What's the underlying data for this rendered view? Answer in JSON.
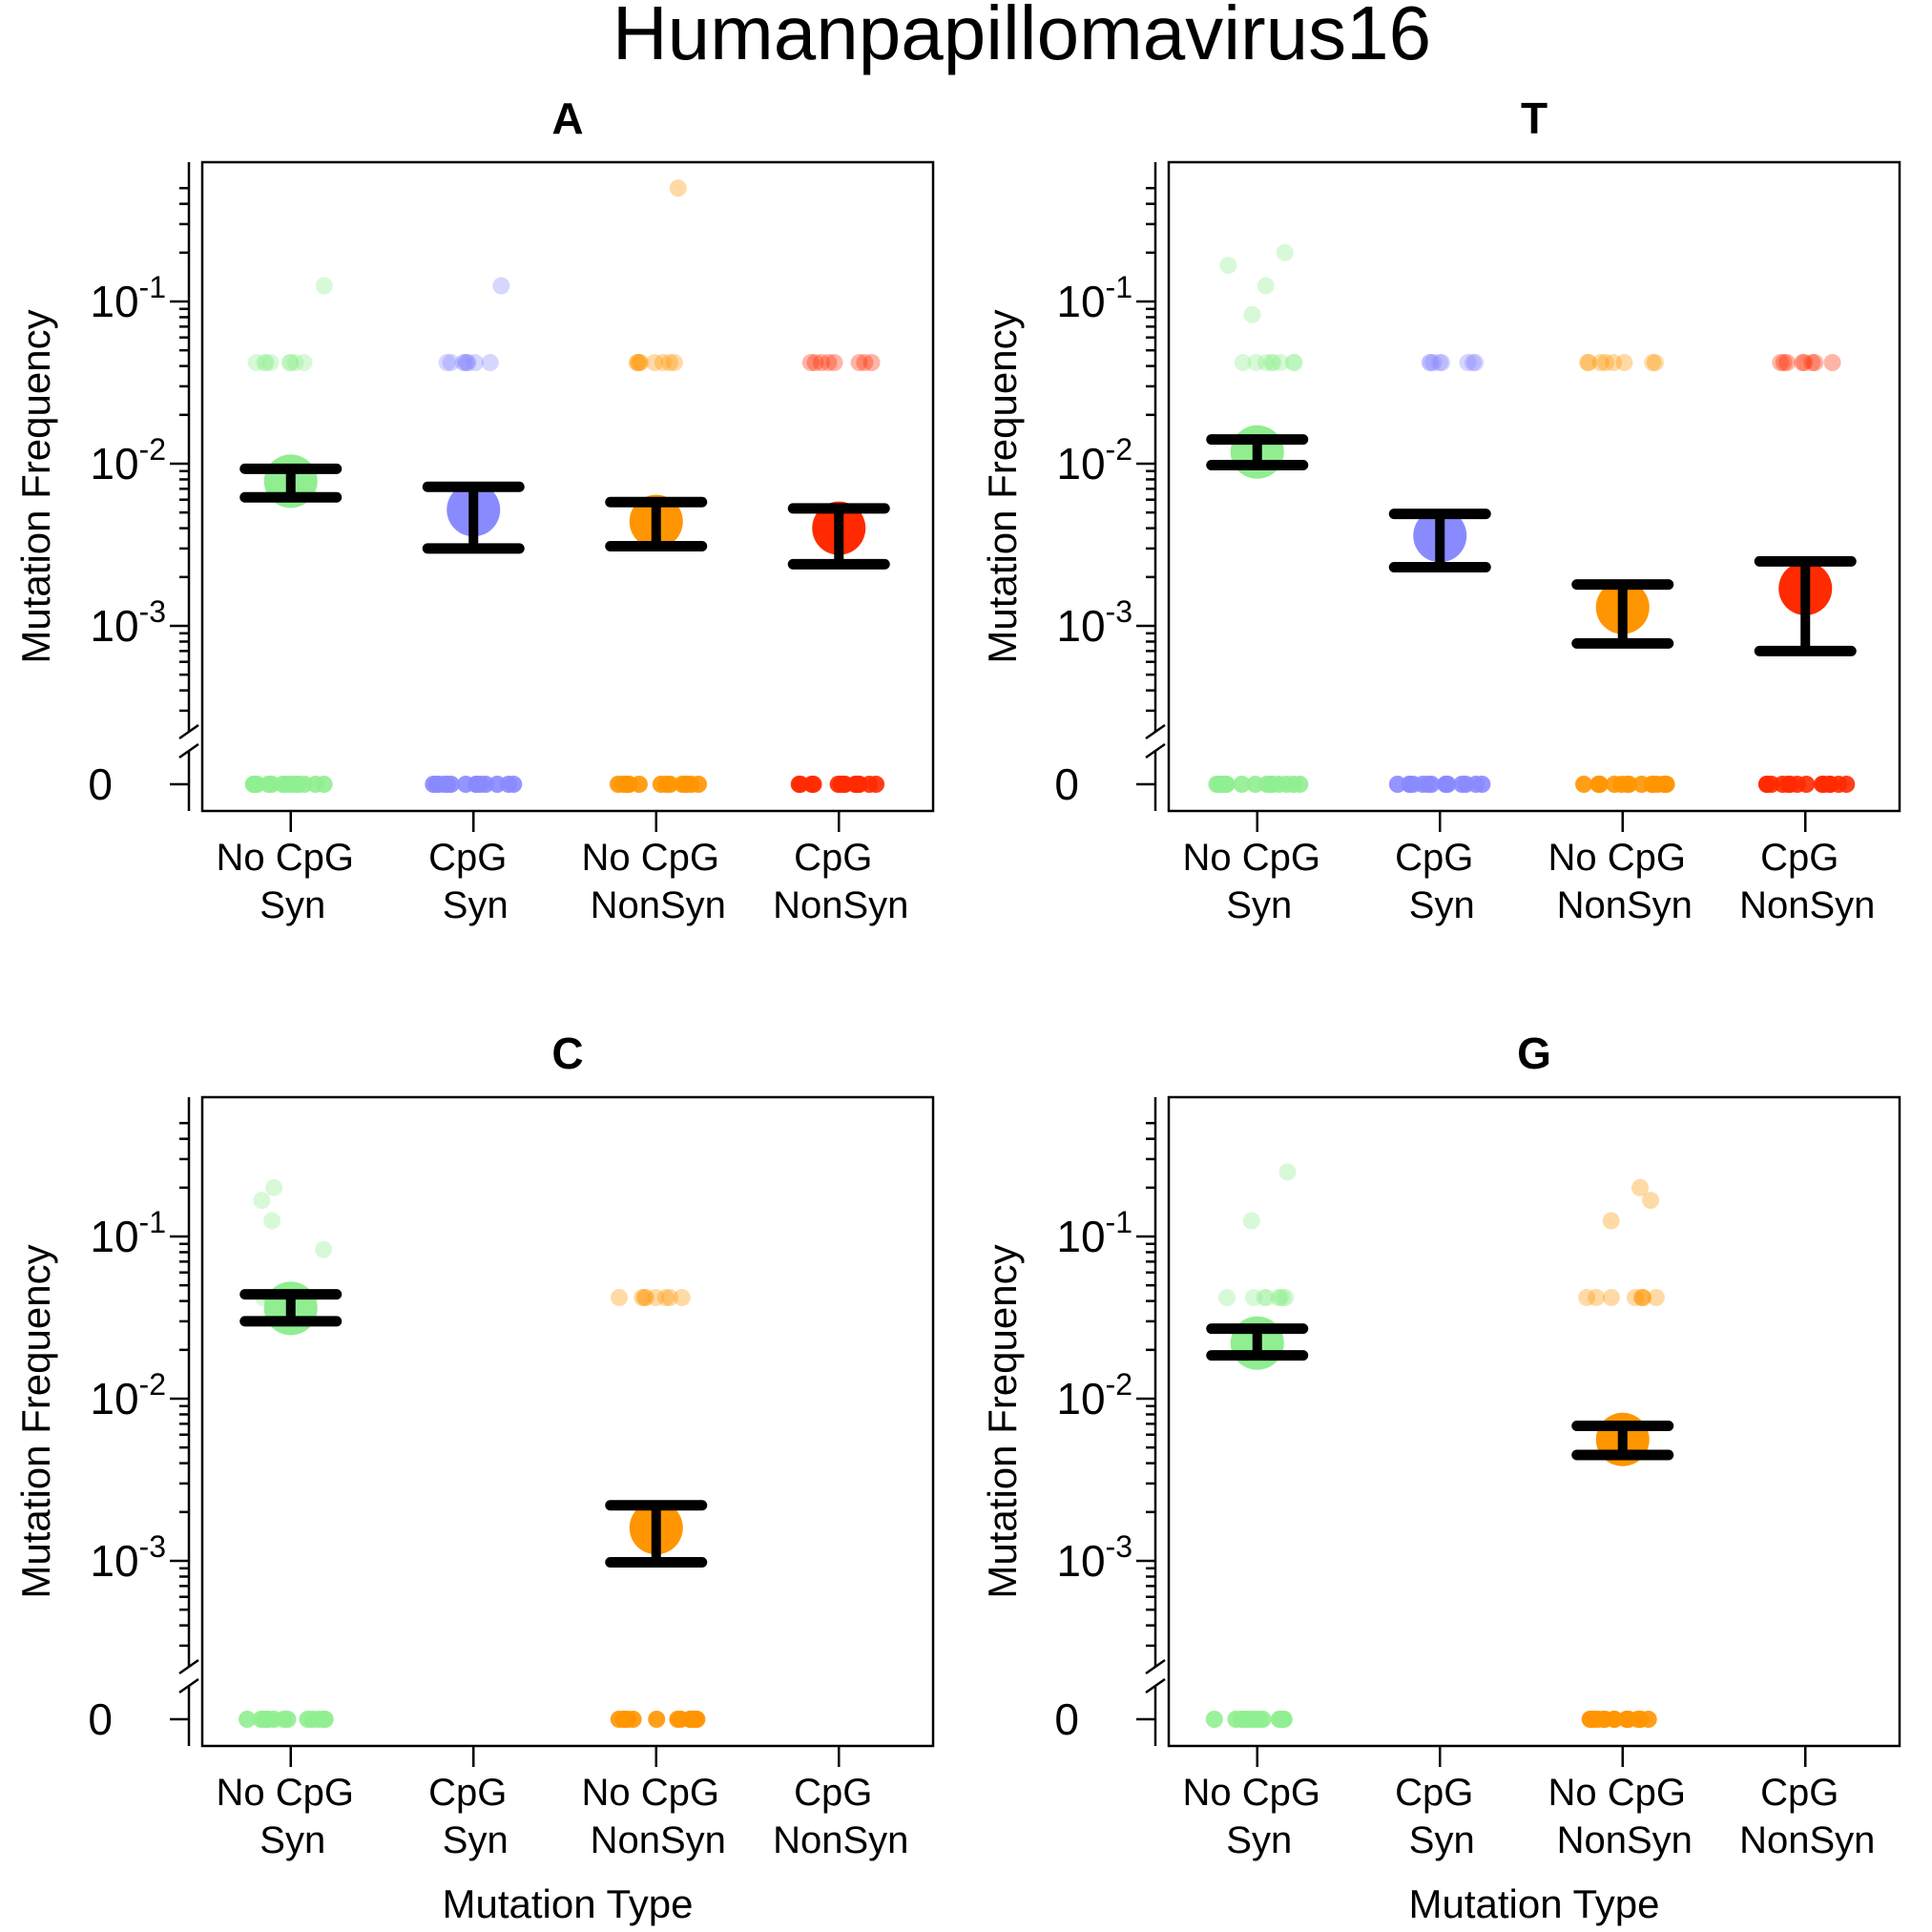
{
  "title": "Humanpapillomavirus16",
  "colors": {
    "no_cpg_syn": "#90EE90",
    "cpg_syn": "#8A8AFF",
    "no_cpg_nonsyn": "#FF9500",
    "cpg_nonsyn": "#FF2A00",
    "error_bar": "#000000"
  },
  "chart_data": [
    {
      "type": "scatter",
      "title": "A",
      "ylabel": "Mutation Frequency",
      "xlabel": "",
      "y_scale": "log with broken axis at 0",
      "ylim": [
        0.0003,
        0.6
      ],
      "y_ticks": [
        {
          "base": "10",
          "exp": "-1"
        },
        {
          "base": "10",
          "exp": "-2"
        },
        {
          "base": "10",
          "exp": "-3"
        },
        {
          "base": "0",
          "exp": ""
        }
      ],
      "categories": [
        {
          "line1": "No CpG",
          "line2": "Syn"
        },
        {
          "line1": "CpG",
          "line2": "Syn"
        },
        {
          "line1": "No CpG",
          "line2": "NonSyn"
        },
        {
          "line1": "CpG",
          "line2": "NonSyn"
        }
      ],
      "series": [
        {
          "category": 0,
          "color_key": "no_cpg_syn",
          "mean": 0.0078,
          "ci": [
            0.0062,
            0.0093
          ],
          "points": [
            0,
            0.042,
            0.125
          ]
        },
        {
          "category": 1,
          "color_key": "cpg_syn",
          "mean": 0.0052,
          "ci": [
            0.003,
            0.0072
          ],
          "points": [
            0,
            0.042,
            0.125
          ]
        },
        {
          "category": 2,
          "color_key": "no_cpg_nonsyn",
          "mean": 0.0044,
          "ci": [
            0.0031,
            0.0058
          ],
          "points": [
            0,
            0.042,
            0.5
          ]
        },
        {
          "category": 3,
          "color_key": "cpg_nonsyn",
          "mean": 0.004,
          "ci": [
            0.0024,
            0.0053
          ],
          "points": [
            0,
            0.042
          ]
        }
      ]
    },
    {
      "type": "scatter",
      "title": "T",
      "ylabel": "Mutation Frequency",
      "xlabel": "",
      "y_scale": "log with broken axis at 0",
      "ylim": [
        0.0003,
        0.6
      ],
      "y_ticks": [
        {
          "base": "10",
          "exp": "-1"
        },
        {
          "base": "10",
          "exp": "-2"
        },
        {
          "base": "10",
          "exp": "-3"
        },
        {
          "base": "0",
          "exp": ""
        }
      ],
      "categories": [
        {
          "line1": "No CpG",
          "line2": "Syn"
        },
        {
          "line1": "CpG",
          "line2": "Syn"
        },
        {
          "line1": "No CpG",
          "line2": "NonSyn"
        },
        {
          "line1": "CpG",
          "line2": "NonSyn"
        }
      ],
      "series": [
        {
          "category": 0,
          "color_key": "no_cpg_syn",
          "mean": 0.0118,
          "ci": [
            0.0098,
            0.0141
          ],
          "points": [
            0,
            0.042,
            0.083,
            0.125,
            0.167,
            0.2
          ]
        },
        {
          "category": 1,
          "color_key": "cpg_syn",
          "mean": 0.0036,
          "ci": [
            0.0023,
            0.0049
          ],
          "points": [
            0,
            0.042
          ]
        },
        {
          "category": 2,
          "color_key": "no_cpg_nonsyn",
          "mean": 0.0013,
          "ci": [
            0.00078,
            0.0018
          ],
          "points": [
            0,
            0.042
          ]
        },
        {
          "category": 3,
          "color_key": "cpg_nonsyn",
          "mean": 0.0017,
          "ci": [
            0.0007,
            0.0025
          ],
          "points": [
            0,
            0.042
          ]
        }
      ]
    },
    {
      "type": "scatter",
      "title": "C",
      "ylabel": "Mutation Frequency",
      "xlabel": "Mutation Type",
      "y_scale": "log with broken axis at 0",
      "ylim": [
        0.0003,
        0.6
      ],
      "y_ticks": [
        {
          "base": "10",
          "exp": "-1"
        },
        {
          "base": "10",
          "exp": "-2"
        },
        {
          "base": "10",
          "exp": "-3"
        },
        {
          "base": "0",
          "exp": ""
        }
      ],
      "categories": [
        {
          "line1": "No CpG",
          "line2": "Syn"
        },
        {
          "line1": "CpG",
          "line2": "Syn"
        },
        {
          "line1": "No CpG",
          "line2": "NonSyn"
        },
        {
          "line1": "CpG",
          "line2": "NonSyn"
        }
      ],
      "series": [
        {
          "category": 0,
          "color_key": "no_cpg_syn",
          "mean": 0.036,
          "ci": [
            0.03,
            0.044
          ],
          "points": [
            0,
            0.042,
            0.083,
            0.125,
            0.167,
            0.2
          ]
        },
        {
          "category": 2,
          "color_key": "no_cpg_nonsyn",
          "mean": 0.0016,
          "ci": [
            0.00098,
            0.0022
          ],
          "points": [
            0,
            0.042
          ]
        }
      ]
    },
    {
      "type": "scatter",
      "title": "G",
      "ylabel": "Mutation Frequency",
      "xlabel": "Mutation Type",
      "y_scale": "log with broken axis at 0",
      "ylim": [
        0.0003,
        0.6
      ],
      "y_ticks": [
        {
          "base": "10",
          "exp": "-1"
        },
        {
          "base": "10",
          "exp": "-2"
        },
        {
          "base": "10",
          "exp": "-3"
        },
        {
          "base": "0",
          "exp": ""
        }
      ],
      "categories": [
        {
          "line1": "No CpG",
          "line2": "Syn"
        },
        {
          "line1": "CpG",
          "line2": "Syn"
        },
        {
          "line1": "No CpG",
          "line2": "NonSyn"
        },
        {
          "line1": "CpG",
          "line2": "NonSyn"
        }
      ],
      "series": [
        {
          "category": 0,
          "color_key": "no_cpg_syn",
          "mean": 0.022,
          "ci": [
            0.0185,
            0.027
          ],
          "points": [
            0,
            0.042,
            0.125,
            0.25
          ]
        },
        {
          "category": 2,
          "color_key": "no_cpg_nonsyn",
          "mean": 0.0056,
          "ci": [
            0.0045,
            0.0068
          ],
          "points": [
            0,
            0.042,
            0.125,
            0.167,
            0.2
          ]
        }
      ]
    }
  ]
}
